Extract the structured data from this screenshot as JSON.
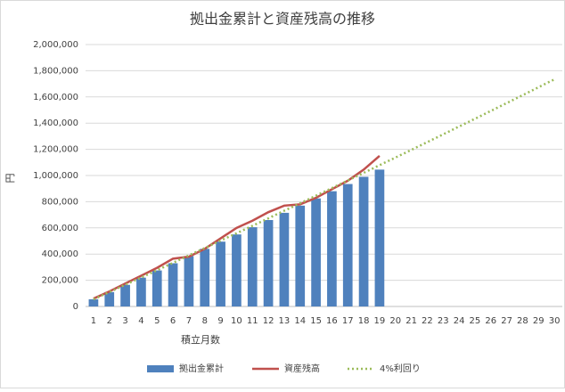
{
  "chart_data": {
    "type": "combo",
    "title": "拠出金累計と資産残高の推移",
    "x_label": "積立月数",
    "y_label": "円",
    "categories": [
      "1",
      "2",
      "3",
      "4",
      "5",
      "6",
      "7",
      "8",
      "9",
      "10",
      "11",
      "12",
      "13",
      "14",
      "15",
      "16",
      "17",
      "18",
      "19",
      "20",
      "21",
      "22",
      "23",
      "24",
      "25",
      "26",
      "27",
      "28",
      "29",
      "30"
    ],
    "series": [
      {
        "name": "拠出金累計",
        "kind": "bar",
        "color": "#4f81bd",
        "values": [
          55000,
          110000,
          165000,
          220000,
          275000,
          330000,
          385000,
          440000,
          495000,
          550000,
          605000,
          660000,
          715000,
          770000,
          825000,
          880000,
          935000,
          990000,
          1045000,
          null,
          null,
          null,
          null,
          null,
          null,
          null,
          null,
          null,
          null,
          null
        ]
      },
      {
        "name": "資産残高",
        "kind": "line",
        "color": "#c0504d",
        "values": [
          60000,
          115000,
          175000,
          235000,
          295000,
          365000,
          380000,
          440000,
          520000,
          600000,
          655000,
          720000,
          770000,
          780000,
          830000,
          895000,
          960000,
          1045000,
          1150000,
          null,
          null,
          null,
          null,
          null,
          null,
          null,
          null,
          null,
          null,
          null
        ]
      },
      {
        "name": "4%利回り",
        "kind": "dotted",
        "color": "#9bbb59",
        "values": [
          55000,
          110000,
          166000,
          221000,
          277000,
          333000,
          390000,
          446000,
          503000,
          559000,
          616000,
          673000,
          731000,
          788000,
          846000,
          904000,
          962000,
          1020000,
          1079000,
          1137000,
          1196000,
          1255000,
          1314000,
          1374000,
          1433000,
          1493000,
          1553000,
          1613000,
          1674000,
          1734000
        ]
      }
    ],
    "ylim": [
      0,
      2000000
    ],
    "yticks": [
      0,
      {
        "value": 200000,
        "label": "200,000"
      },
      {
        "value": 400000,
        "label": "400,000"
      },
      {
        "value": 600000,
        "label": "600,000"
      },
      {
        "value": 800000,
        "label": "800,000"
      },
      {
        "value": 1000000,
        "label": "1,000,000"
      },
      {
        "value": 1200000,
        "label": "1,200,000"
      },
      {
        "value": 1400000,
        "label": "1,400,000"
      },
      {
        "value": 1600000,
        "label": "1,600,000"
      },
      {
        "value": 1800000,
        "label": "1,800,000"
      },
      {
        "value": 2000000,
        "label": "2,000,000"
      }
    ],
    "grid": true,
    "legend": "bottom"
  }
}
